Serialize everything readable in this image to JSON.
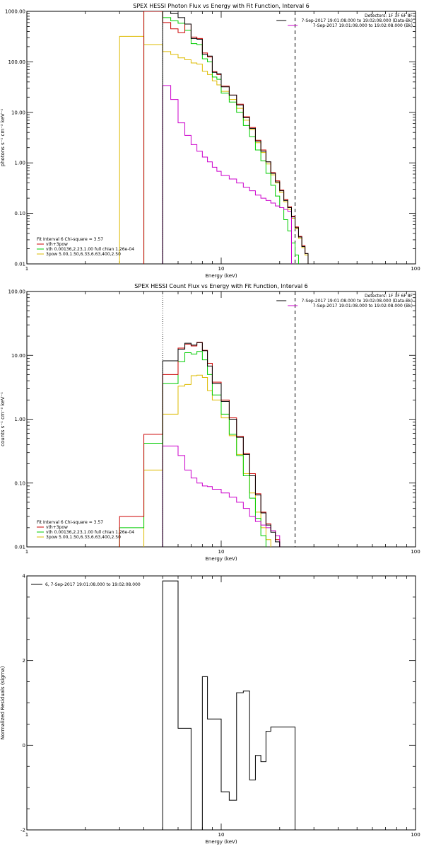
{
  "chart_data": [
    {
      "type": "line",
      "title": "SPEX HESSI Photon Flux vs Energy with Fit Function, Interval 6",
      "xlabel": "Energy (keV)",
      "ylabel": "photons s⁻¹ cm⁻² keV⁻¹",
      "xscale": "log",
      "yscale": "log",
      "xlim": [
        1,
        100
      ],
      "ylim": [
        0.01,
        1000
      ],
      "x_ticks": [
        "1",
        "10",
        "100"
      ],
      "y_ticks": [
        "0.01",
        "0.10",
        "1.00",
        "10.00",
        "100.00",
        "1000.00"
      ],
      "grid": false,
      "info_lines": [
        "Detectors: 1F 3F 6F 8F",
        "7-Sep-2017 19:01:08.000 to 19:02:08.000 (Data-Bk)",
        "7-Sep-2017 19:01:08.000 to 19:02:08.000 (Bk)"
      ],
      "legend_title": "Fit Interval 6   Chi-square = 3.57",
      "legend": [
        "vth+3pow",
        "vth 0.00136,2.23,1.00  full chian 1.26e-04",
        "3pow 5.00,1.50,6.33,6.63,400,2.50"
      ],
      "energy_edges": [
        3,
        4,
        5,
        5.5,
        6,
        6.5,
        7,
        7.5,
        8,
        8.5,
        9,
        9.5,
        10,
        11,
        12,
        13,
        14,
        15,
        16,
        17,
        18,
        19,
        20,
        21,
        22,
        23,
        24,
        25,
        26,
        27,
        28,
        29,
        30
      ],
      "series": [
        {
          "name": "Data-Bk",
          "color": "#000000",
          "values": [
            null,
            null,
            1600,
            900,
            750,
            560,
            290,
            280,
            140,
            130,
            62,
            58,
            32,
            22,
            14,
            7.8,
            4.8,
            2.7,
            1.7,
            1.05,
            0.62,
            0.42,
            0.28,
            0.18,
            0.13,
            0.085,
            0.052,
            0.034,
            0.022,
            0.016,
            null,
            null
          ]
        },
        {
          "name": "Bk",
          "color": "#cc00cc",
          "values": [
            null,
            null,
            34,
            18,
            6.2,
            3.5,
            2.3,
            1.7,
            1.3,
            1.05,
            0.82,
            0.68,
            0.56,
            0.48,
            0.4,
            0.33,
            0.28,
            0.23,
            0.2,
            0.18,
            0.16,
            0.14,
            0.13,
            0.12,
            0.11,
            null,
            null,
            null,
            null,
            null,
            null,
            null
          ]
        },
        {
          "name": "vth+3pow",
          "color": "#cc0000",
          "values": [
            null,
            1500,
            600,
            450,
            380,
            560,
            310,
            290,
            150,
            125,
            64,
            56,
            33,
            22,
            14.5,
            8.2,
            5,
            2.8,
            1.8,
            1.05,
            0.64,
            0.44,
            0.29,
            0.19,
            0.135,
            0.088,
            0.054,
            0.035,
            0.023,
            0.016,
            null,
            null
          ]
        },
        {
          "name": "vth",
          "color": "#00cc00",
          "values": [
            null,
            1000,
            750,
            650,
            580,
            420,
            230,
            220,
            115,
            100,
            50,
            45,
            24,
            16,
            10,
            5.5,
            3.3,
            1.8,
            1.1,
            0.62,
            0.36,
            0.22,
            0.13,
            0.075,
            0.045,
            0.026,
            0.015,
            null,
            null,
            null,
            null,
            null
          ]
        },
        {
          "name": "3pow",
          "color": "#ddbb00",
          "values": [
            320,
            220,
            160,
            140,
            120,
            110,
            95,
            90,
            65,
            56,
            42,
            35,
            26,
            18,
            12,
            7,
            4.5,
            2.5,
            1.6,
            0.95,
            0.58,
            0.4,
            0.26,
            0.17,
            0.12,
            0.08,
            0.05,
            0.032,
            0.021,
            0.015,
            null,
            null
          ]
        }
      ],
      "dashed_vertical_at_kev": 24,
      "dotted_vertical_at_kev": 5
    },
    {
      "type": "line",
      "title": "SPEX HESSI Count Flux vs Energy with Fit Function, Interval 6",
      "xlabel": "Energy (keV)",
      "ylabel": "counts s⁻¹ cm⁻² keV⁻¹",
      "xscale": "log",
      "yscale": "log",
      "xlim": [
        1,
        100
      ],
      "ylim": [
        0.01,
        100
      ],
      "x_ticks": [
        "1",
        "10",
        "100"
      ],
      "y_ticks": [
        "0.01",
        "0.10",
        "1.00",
        "10.00",
        "100.00"
      ],
      "grid": false,
      "info_lines": [
        "Detectors: 1F 3F 6F 8F",
        "7-Sep-2017 19:01:08.000 to 19:02:08.000 (Data-Bk)",
        "7-Sep-2017 19:01:08.000 to 19:02:08.000 (Bk)"
      ],
      "legend_title": "Fit Interval 6   Chi-square = 3.57",
      "legend": [
        "vth+3pow",
        "vth 0.00136,2.23,1.00  full chian 1.26e-04",
        "3pow 5.00,1.50,6.33,6.63,400,2.50"
      ],
      "energy_edges": [
        3,
        4,
        5,
        6,
        6.5,
        7,
        7.5,
        8,
        8.5,
        9,
        10,
        11,
        12,
        13,
        14,
        15,
        16,
        17,
        18,
        19,
        20,
        21,
        22,
        23,
        24,
        25,
        26
      ],
      "series": [
        {
          "name": "Data-Bk",
          "color": "#000000",
          "values": [
            null,
            null,
            8.2,
            12.5,
            15.5,
            14.5,
            15.8,
            11.8,
            6.8,
            3.6,
            1.9,
            1.0,
            0.52,
            0.28,
            0.13,
            0.065,
            0.034,
            0.022,
            0.017,
            0.012,
            null,
            null,
            null,
            null,
            null,
            null
          ]
        },
        {
          "name": "Bk",
          "color": "#cc00cc",
          "values": [
            null,
            null,
            0.38,
            0.27,
            0.16,
            0.12,
            0.1,
            0.09,
            0.088,
            0.08,
            0.07,
            0.06,
            0.05,
            0.04,
            0.03,
            0.025,
            0.022,
            0.02,
            0.018,
            0.015,
            null,
            null,
            null,
            null,
            null,
            null
          ]
        },
        {
          "name": "vth+3pow",
          "color": "#cc0000",
          "values": [
            0.03,
            0.58,
            5,
            13,
            15,
            14,
            16,
            12,
            7.5,
            3.8,
            2,
            1.05,
            0.54,
            0.29,
            0.14,
            0.068,
            0.035,
            0.023,
            0.018,
            0.013,
            null,
            null,
            null,
            null,
            null,
            null
          ]
        },
        {
          "name": "vth",
          "color": "#00cc00",
          "values": [
            0.02,
            0.42,
            3.6,
            8,
            11,
            10.5,
            11.5,
            8.5,
            5,
            2.4,
            1.2,
            0.58,
            0.27,
            0.13,
            0.058,
            0.028,
            0.015,
            null,
            null,
            null,
            null,
            null,
            null,
            null,
            null,
            null
          ]
        },
        {
          "name": "3pow",
          "color": "#ddbb00",
          "values": [
            null,
            0.16,
            1.2,
            3.3,
            3.5,
            4.8,
            4.9,
            4.5,
            2.8,
            2,
            1.05,
            0.55,
            0.28,
            0.14,
            0.07,
            0.035,
            0.02,
            0.013,
            null,
            null,
            null,
            null,
            null,
            null,
            null,
            null
          ]
        }
      ],
      "dashed_vertical_at_kev": 24,
      "dotted_vertical_at_kev": 5
    },
    {
      "type": "line",
      "xlabel": "Energy (keV)",
      "ylabel": "Normalized Residuals (sigma)",
      "xscale": "log",
      "yscale": "linear",
      "xlim": [
        1,
        100
      ],
      "ylim": [
        -2,
        4
      ],
      "x_ticks": [
        "1",
        "10",
        "100"
      ],
      "y_ticks": [
        "-2",
        "0",
        "2",
        "4"
      ],
      "grid": false,
      "legend": [
        "6, 7-Sep-2017 19:01:08.000 to 19:02:08.000"
      ],
      "energy_edges": [
        5,
        6,
        7,
        7.5,
        8,
        8.5,
        9,
        10,
        11,
        12,
        13,
        14,
        15,
        16,
        17,
        18,
        19,
        20,
        22,
        24
      ],
      "series": [
        {
          "name": "6",
          "color": "#000000",
          "values": [
            3.88,
            0.4,
            -2.0,
            -2.0,
            1.62,
            0.62,
            0.62,
            -1.1,
            -1.3,
            1.24,
            1.28,
            -0.82,
            -0.24,
            -0.39,
            0.33,
            0.43,
            0.43,
            0.43,
            0.43
          ]
        }
      ]
    }
  ]
}
